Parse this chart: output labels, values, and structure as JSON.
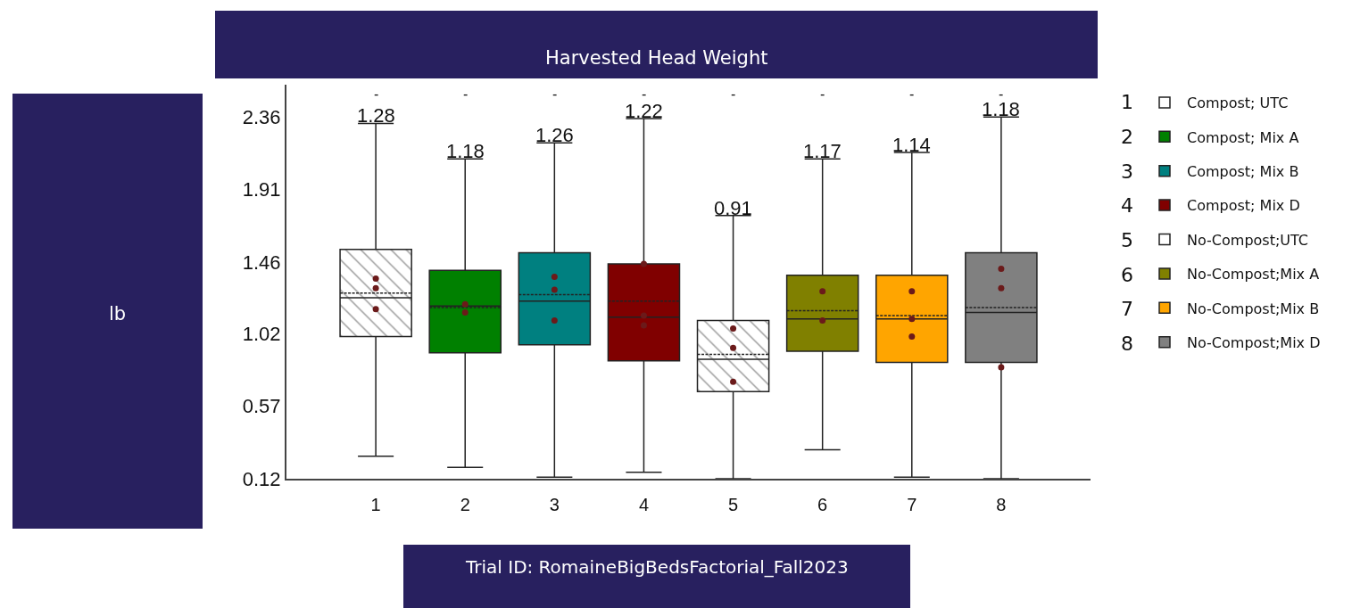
{
  "chart_data": {
    "type": "box",
    "title": "Harvested Head Weight",
    "categories": [
      "1",
      "2",
      "3",
      "4",
      "5",
      "6",
      "7",
      "8"
    ],
    "ylim": [
      0.12,
      2.56
    ],
    "yticks": [
      0.12,
      0.57,
      1.02,
      1.46,
      1.91,
      2.36
    ],
    "legend": "right",
    "series": [
      {
        "name": "Compost; UTC",
        "color": "#ffffff",
        "boxes": [
          {
            "low": 0.26,
            "q1": 1.0,
            "median": 1.24,
            "q3": 1.54,
            "high": 2.32,
            "mean": 1.27
          },
          null,
          null,
          null,
          null,
          null,
          null,
          null
        ]
      },
      {
        "name": "Compost; Mix A",
        "color": "#008000",
        "boxes": [
          null,
          {
            "low": 0.19,
            "q1": 0.9,
            "median": 1.19,
            "q3": 1.41,
            "high": 2.1,
            "mean": 1.18
          },
          null,
          null,
          null,
          null,
          null,
          null
        ]
      },
      {
        "name": "Compost; Mix B",
        "color": "#008080",
        "boxes": [
          null,
          null,
          {
            "low": 0.13,
            "q1": 0.95,
            "median": 1.22,
            "q3": 1.52,
            "high": 2.2,
            "mean": 1.26
          },
          null,
          null,
          null,
          null,
          null
        ]
      },
      {
        "name": "Compost; Mix D",
        "color": "#800000",
        "boxes": [
          null,
          null,
          null,
          {
            "low": 0.16,
            "q1": 0.85,
            "median": 1.12,
            "q3": 1.45,
            "high": 2.35,
            "mean": 1.22
          },
          null,
          null,
          null,
          null
        ]
      },
      {
        "name": "No-Compost;UTC",
        "color": "#ffffff",
        "boxes": [
          null,
          null,
          null,
          null,
          {
            "low": 0.12,
            "q1": 0.66,
            "median": 0.86,
            "q3": 1.1,
            "high": 1.75,
            "mean": 0.89
          },
          null,
          null,
          null
        ]
      },
      {
        "name": "No-Compost;Mix A",
        "color": "#808000",
        "boxes": [
          null,
          null,
          null,
          null,
          null,
          {
            "low": 0.3,
            "q1": 0.91,
            "median": 1.11,
            "q3": 1.38,
            "high": 2.1,
            "mean": 1.16
          },
          null,
          null
        ]
      },
      {
        "name": "No-Compost;Mix B",
        "color": "#ffa500",
        "boxes": [
          null,
          null,
          null,
          null,
          null,
          null,
          {
            "low": 0.13,
            "q1": 0.84,
            "median": 1.11,
            "q3": 1.38,
            "high": 2.14,
            "mean": 1.13
          },
          null
        ]
      },
      {
        "name": "No-Compost;Mix D",
        "color": "#808080",
        "boxes": [
          null,
          null,
          null,
          null,
          null,
          null,
          null,
          {
            "low": 0.12,
            "q1": 0.84,
            "median": 1.15,
            "q3": 1.52,
            "high": 2.36,
            "mean": 1.18
          }
        ]
      },
      {
        "type": "scatter",
        "color": "#6b1a1a",
        "marker": "circle",
        "x": [
          "1",
          "1",
          "1",
          "2",
          "2",
          "3",
          "3",
          "3",
          "4",
          "4",
          "4",
          "5",
          "5",
          "5",
          "6",
          "6",
          "7",
          "7",
          "7",
          "8",
          "8",
          "8"
        ],
        "values": [
          1.36,
          1.3,
          1.17,
          1.2,
          1.15,
          1.37,
          1.29,
          1.1,
          1.45,
          1.13,
          1.07,
          1.05,
          0.93,
          0.72,
          1.28,
          1.1,
          1.28,
          1.11,
          1.0,
          1.42,
          1.3,
          0.81
        ]
      }
    ],
    "annotations": [
      "1.28",
      "1.18",
      "1.26",
      "1.22",
      "0.91",
      "1.17",
      "1.14",
      "1.18",
      "-",
      "-",
      "-",
      "-",
      "-",
      "-",
      "-",
      "-",
      "lb",
      "Trial ID: RomaineBigBedsFactorial_Fall2023"
    ]
  }
}
